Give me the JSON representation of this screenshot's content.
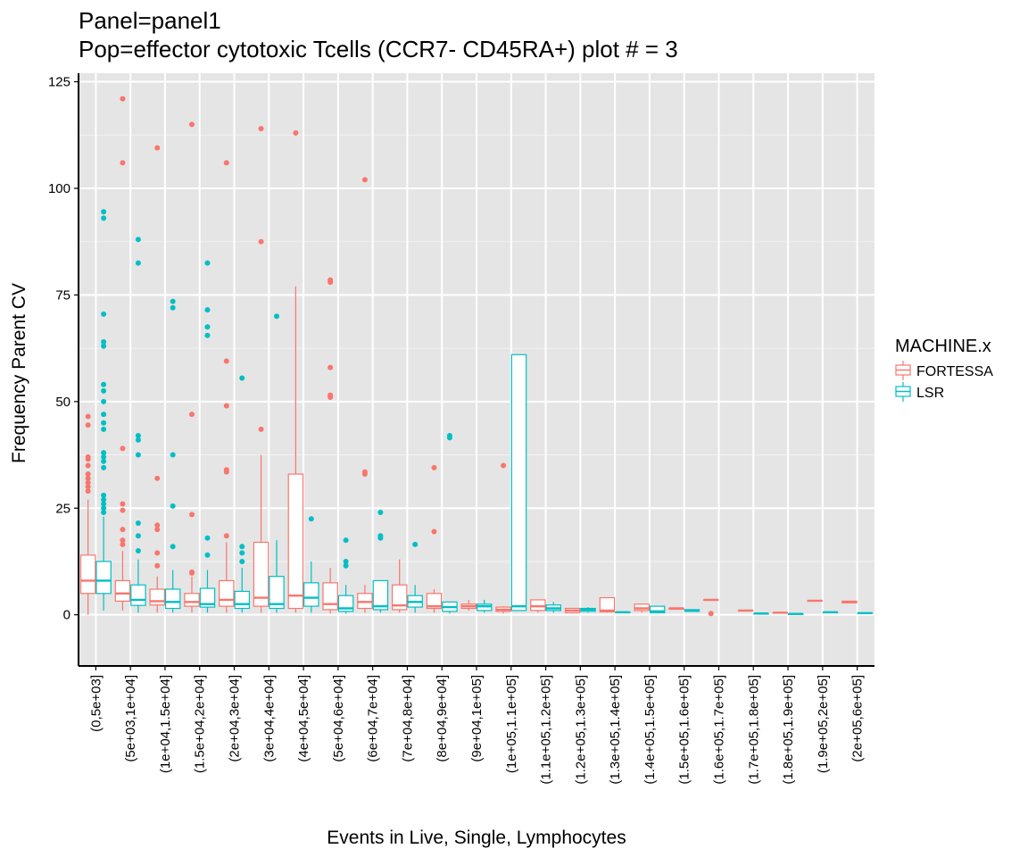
{
  "chart_data": {
    "type": "box",
    "title_line1": "Panel=panel1",
    "title_line2": "Pop=effector cytotoxic Tcells  (CCR7-  CD45RA+) plot # = 3",
    "xlabel": "Events in Live, Single, Lymphocytes",
    "ylabel": "Frequency Parent CV",
    "ylim": [
      -12,
      127
    ],
    "yticks": [
      0,
      25,
      50,
      75,
      100,
      125
    ],
    "grid": true,
    "legend": {
      "title": "MACHINE.x",
      "position": "right",
      "entries": [
        {
          "name": "FORTESSA",
          "color": "#F8766D"
        },
        {
          "name": "LSR",
          "color": "#00BFC4"
        }
      ]
    },
    "categories": [
      "(0,5e+03]",
      "(5e+03,1e+04]",
      "(1e+04,1.5e+04]",
      "(1.5e+04,2e+04]",
      "(2e+04,3e+04]",
      "(3e+04,4e+04]",
      "(4e+04,5e+04]",
      "(5e+04,6e+04]",
      "(6e+04,7e+04]",
      "(7e+04,8e+04]",
      "(8e+04,9e+04]",
      "(9e+04,1e+05]",
      "(1e+05,1.1e+05]",
      "(1.1e+05,1.2e+05]",
      "(1.2e+05,1.3e+05]",
      "(1.3e+05,1.4e+05]",
      "(1.4e+05,1.5e+05]",
      "(1.5e+05,1.6e+05]",
      "(1.6e+05,1.7e+05]",
      "(1.7e+05,1.8e+05]",
      "(1.8e+05,1.9e+05]",
      "(1.9e+05,2e+05]",
      "(2e+05,6e+05]"
    ],
    "series": [
      {
        "name": "FORTESSA",
        "color": "#F8766D",
        "boxes": [
          {
            "cat": 0,
            "lw": 0,
            "q1": 5,
            "med": 8,
            "q3": 14,
            "uw": 27,
            "outliers": [
              29,
              30,
              31,
              32,
              33,
              35,
              36.5,
              37,
              44.5,
              46.5
            ]
          },
          {
            "cat": 1,
            "lw": 1,
            "q1": 3.2,
            "med": 5,
            "q3": 8,
            "uw": 15,
            "outliers": [
              16.5,
              17.5,
              20,
              24.5,
              26,
              39,
              106,
              121
            ]
          },
          {
            "cat": 2,
            "lw": 0.5,
            "q1": 2.3,
            "med": 3.2,
            "q3": 6,
            "uw": 9,
            "outliers": [
              11.5,
              14.5,
              20,
              21,
              32,
              109.5
            ]
          },
          {
            "cat": 3,
            "lw": 0.5,
            "q1": 2,
            "med": 3,
            "q3": 5,
            "uw": 9,
            "outliers": [
              9.8,
              10,
              23.5,
              47,
              115
            ]
          },
          {
            "cat": 4,
            "lw": 0.5,
            "q1": 2,
            "med": 3.5,
            "q3": 8,
            "uw": 17,
            "outliers": [
              18.5,
              33.5,
              34,
              49,
              59.5,
              106
            ]
          },
          {
            "cat": 5,
            "lw": 0.5,
            "q1": 2,
            "med": 4,
            "q3": 17,
            "uw": 37.5,
            "outliers": [
              43.5,
              87.5,
              114
            ]
          },
          {
            "cat": 6,
            "lw": 0.5,
            "q1": 1.5,
            "med": 4.5,
            "q3": 33,
            "uw": 77,
            "outliers": [
              113
            ]
          },
          {
            "cat": 7,
            "lw": 0.3,
            "q1": 1.2,
            "med": 2.5,
            "q3": 7.5,
            "uw": 11,
            "outliers": [
              51,
              51.5,
              58,
              78,
              78.5
            ]
          },
          {
            "cat": 8,
            "lw": 0.5,
            "q1": 1.5,
            "med": 3,
            "q3": 5,
            "uw": 7,
            "outliers": [
              33,
              33.5,
              102
            ]
          },
          {
            "cat": 9,
            "lw": 0.5,
            "q1": 1.2,
            "med": 2.2,
            "q3": 7,
            "uw": 13,
            "outliers": []
          },
          {
            "cat": 10,
            "lw": 0.5,
            "q1": 1.5,
            "med": 2,
            "q3": 5,
            "uw": 6,
            "outliers": [
              19.5,
              34.5
            ]
          },
          {
            "cat": 11,
            "lw": 1,
            "q1": 1.5,
            "med": 2,
            "q3": 2.5,
            "uw": 3.5,
            "outliers": []
          },
          {
            "cat": 12,
            "lw": 0.3,
            "q1": 0.8,
            "med": 1.2,
            "q3": 1.8,
            "uw": 2,
            "outliers": [
              35
            ]
          },
          {
            "cat": 13,
            "lw": 0.5,
            "q1": 1,
            "med": 2,
            "q3": 3.5,
            "uw": 3.5,
            "outliers": []
          },
          {
            "cat": 14,
            "lw": 0.3,
            "q1": 0.5,
            "med": 1,
            "q3": 1.5,
            "uw": 1.5,
            "outliers": []
          },
          {
            "cat": 15,
            "lw": 0.5,
            "q1": 0.7,
            "med": 1,
            "q3": 4,
            "uw": 4,
            "outliers": []
          },
          {
            "cat": 16,
            "lw": 0.5,
            "q1": 1,
            "med": 1.5,
            "q3": 2.5,
            "uw": 2.5,
            "outliers": []
          },
          {
            "cat": 17,
            "lw": 1.3,
            "q1": 1.3,
            "med": 1.5,
            "q3": 1.5,
            "uw": 1.5,
            "outliers": []
          },
          {
            "cat": 18,
            "lw": 3.5,
            "q1": 3.5,
            "med": 3.5,
            "q3": 3.5,
            "uw": 3.5,
            "outliers": [
              0.3
            ]
          },
          {
            "cat": 19,
            "lw": 1,
            "q1": 1,
            "med": 1,
            "q3": 1,
            "uw": 1,
            "outliers": []
          },
          {
            "cat": 20,
            "lw": 0.5,
            "q1": 0.5,
            "med": 0.5,
            "q3": 0.5,
            "uw": 0.5,
            "outliers": []
          },
          {
            "cat": 21,
            "lw": 3.3,
            "q1": 3.3,
            "med": 3.3,
            "q3": 3.3,
            "uw": 3.3,
            "outliers": []
          },
          {
            "cat": 22,
            "lw": 2.8,
            "q1": 2.8,
            "med": 3,
            "q3": 3.2,
            "uw": 3.2,
            "outliers": []
          }
        ]
      },
      {
        "name": "LSR",
        "color": "#00BFC4",
        "boxes": [
          {
            "cat": 0,
            "lw": 1,
            "q1": 5,
            "med": 8,
            "q3": 12.5,
            "uw": 23,
            "outliers": [
              24,
              25,
              26,
              27,
              28,
              34.5,
              36,
              37,
              38,
              43.5,
              45,
              47,
              50,
              52.5,
              54,
              63,
              64,
              70.5,
              93,
              94.5
            ]
          },
          {
            "cat": 1,
            "lw": 0.5,
            "q1": 2.2,
            "med": 3.5,
            "q3": 7,
            "uw": 13,
            "outliers": [
              15,
              18.5,
              21.5,
              37.5,
              41,
              42,
              82.5,
              88
            ]
          },
          {
            "cat": 2,
            "lw": 0.5,
            "q1": 1.5,
            "med": 3,
            "q3": 6,
            "uw": 10.5,
            "outliers": [
              16,
              25.5,
              37.5,
              72,
              73.5
            ]
          },
          {
            "cat": 3,
            "lw": 0.5,
            "q1": 1.8,
            "med": 2.5,
            "q3": 6.2,
            "uw": 10.5,
            "outliers": [
              14,
              18,
              65.5,
              67.5,
              71.5,
              82.5
            ]
          },
          {
            "cat": 4,
            "lw": 0.5,
            "q1": 1.5,
            "med": 2.5,
            "q3": 5.5,
            "uw": 11,
            "outliers": [
              12.5,
              14.5,
              16,
              55.5
            ]
          },
          {
            "cat": 5,
            "lw": 0.5,
            "q1": 1.5,
            "med": 2.5,
            "q3": 9,
            "uw": 17.5,
            "outliers": [
              70
            ]
          },
          {
            "cat": 6,
            "lw": 0.5,
            "q1": 2,
            "med": 4,
            "q3": 7.5,
            "uw": 12.5,
            "outliers": [
              22.5
            ]
          },
          {
            "cat": 7,
            "lw": 0.3,
            "q1": 0.8,
            "med": 1.5,
            "q3": 4.5,
            "uw": 7,
            "outliers": [
              11.5,
              12.5,
              17.5
            ]
          },
          {
            "cat": 8,
            "lw": 0.5,
            "q1": 1.2,
            "med": 2,
            "q3": 8,
            "uw": 8,
            "outliers": [
              18,
              18.5,
              24
            ]
          },
          {
            "cat": 9,
            "lw": 0.5,
            "q1": 1.8,
            "med": 3,
            "q3": 4.5,
            "uw": 7,
            "outliers": [
              16.5
            ]
          },
          {
            "cat": 10,
            "lw": 0.3,
            "q1": 0.8,
            "med": 1.8,
            "q3": 3,
            "uw": 3,
            "outliers": [
              41.5,
              42
            ]
          },
          {
            "cat": 11,
            "lw": 0.5,
            "q1": 1,
            "med": 2,
            "q3": 2.5,
            "uw": 3.5,
            "outliers": []
          },
          {
            "cat": 12,
            "lw": 1,
            "q1": 1,
            "med": 2,
            "q3": 61,
            "uw": 61,
            "outliers": []
          },
          {
            "cat": 13,
            "lw": 0.5,
            "q1": 1,
            "med": 1.5,
            "q3": 2.3,
            "uw": 3,
            "outliers": []
          },
          {
            "cat": 14,
            "lw": 0.5,
            "q1": 0.8,
            "med": 1.2,
            "q3": 1.5,
            "uw": 1.8,
            "outliers": []
          },
          {
            "cat": 15,
            "lw": 0.6,
            "q1": 0.6,
            "med": 0.6,
            "q3": 0.6,
            "uw": 0.6,
            "outliers": []
          },
          {
            "cat": 16,
            "lw": 0.5,
            "q1": 0.5,
            "med": 0.8,
            "q3": 2,
            "uw": 2,
            "outliers": []
          },
          {
            "cat": 17,
            "lw": 0.8,
            "q1": 0.8,
            "med": 1,
            "q3": 1.2,
            "uw": 1.2,
            "outliers": []
          },
          {
            "cat": 19,
            "lw": 0.3,
            "q1": 0.3,
            "med": 0.3,
            "q3": 0.3,
            "uw": 0.3,
            "outliers": []
          },
          {
            "cat": 20,
            "lw": 0.2,
            "q1": 0.2,
            "med": 0.2,
            "q3": 0.2,
            "uw": 0.2,
            "outliers": []
          },
          {
            "cat": 21,
            "lw": 0.6,
            "q1": 0.6,
            "med": 0.6,
            "q3": 0.6,
            "uw": 0.6,
            "outliers": []
          },
          {
            "cat": 22,
            "lw": 0.4,
            "q1": 0.4,
            "med": 0.4,
            "q3": 0.4,
            "uw": 0.4,
            "outliers": []
          }
        ]
      }
    ]
  }
}
